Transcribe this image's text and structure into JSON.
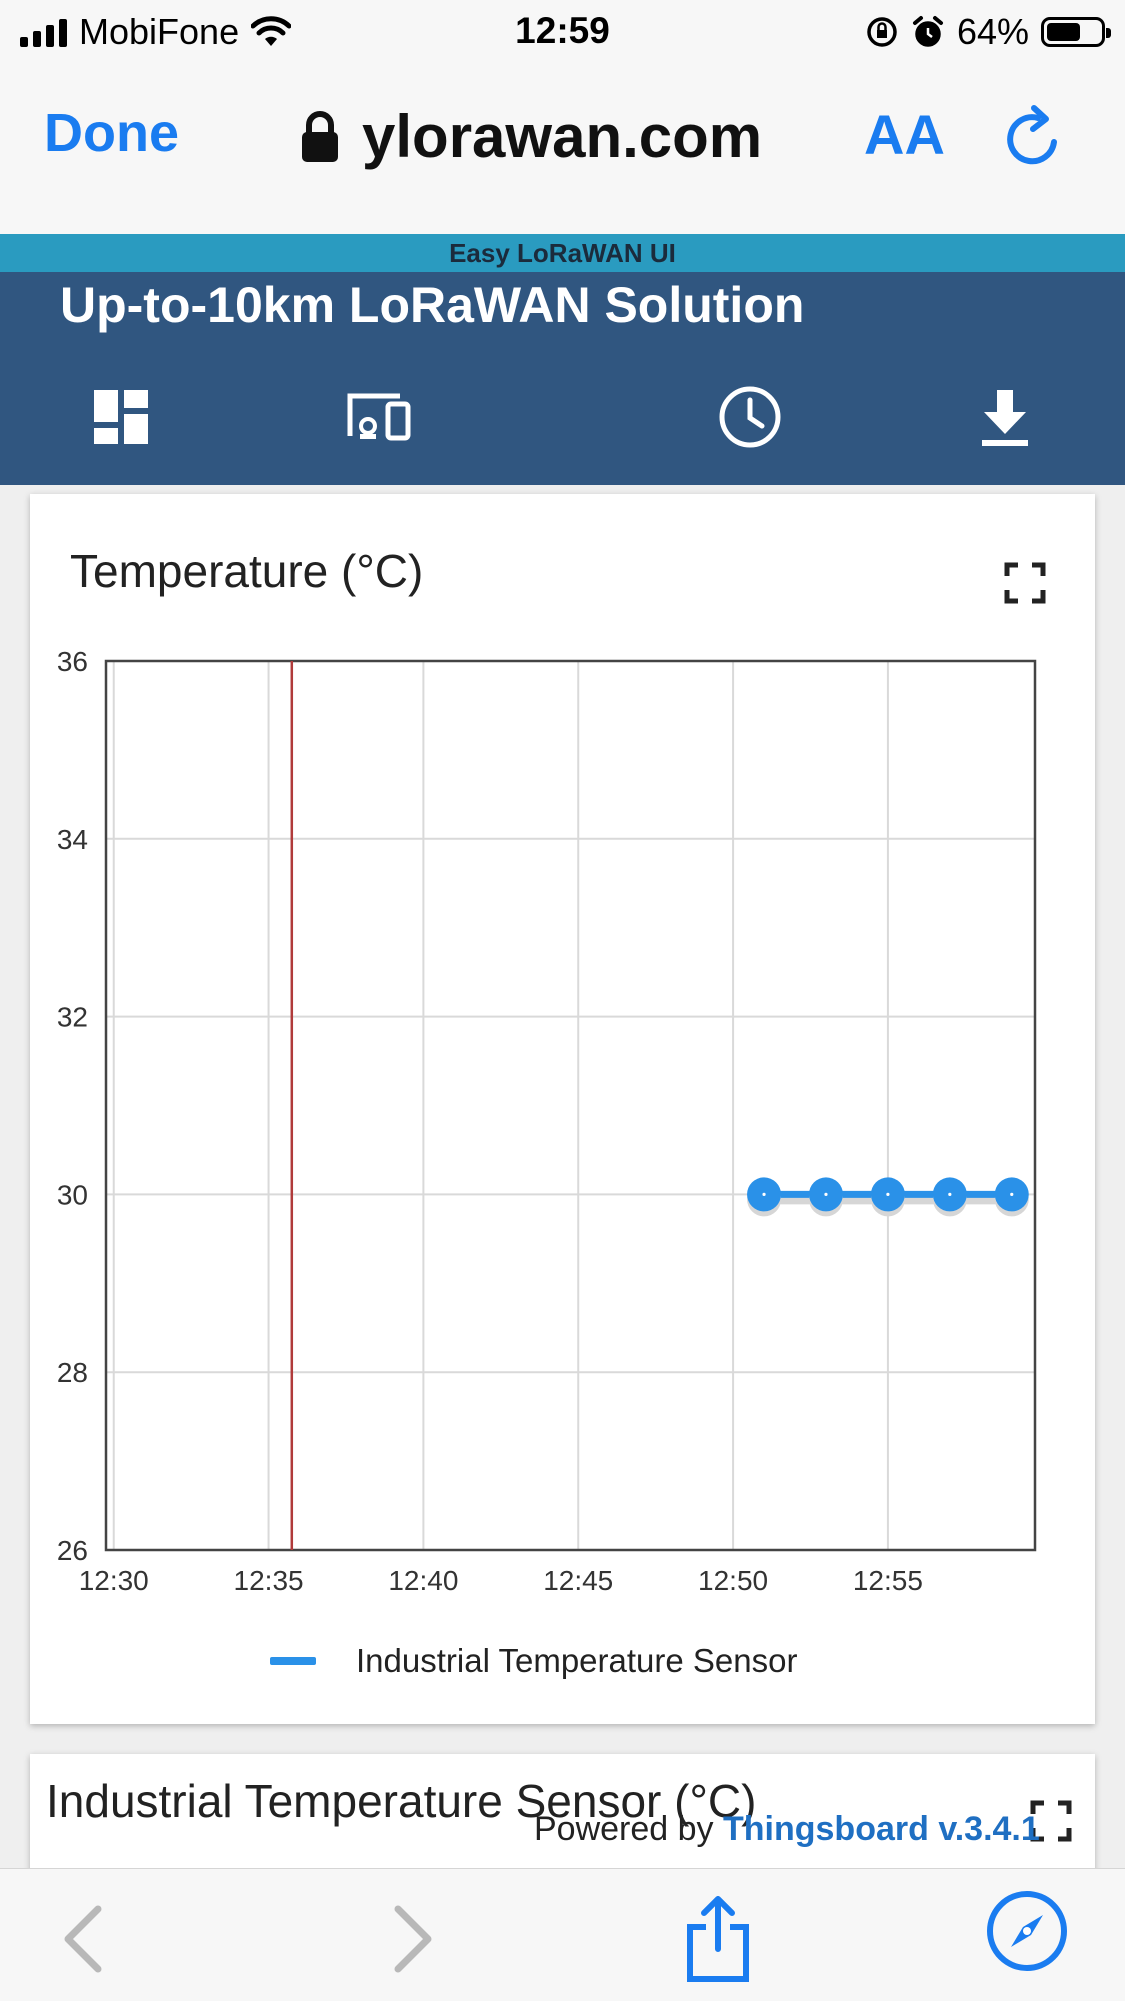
{
  "status_bar": {
    "carrier": "MobiFone",
    "time": "12:59",
    "battery": "64%",
    "battery_level": 0.64
  },
  "browser": {
    "done_label": "Done",
    "url": "ylorawan.com",
    "text_size_label": "AA",
    "icons": [
      "lock-icon",
      "reload-icon"
    ]
  },
  "dashboard": {
    "app_name": "Easy LoRaWAN UI",
    "title": "Up-to-10km LoRaWAN Solution",
    "toolbar_icons": [
      "dashboards-icon",
      "devices-icon",
      "clock-icon",
      "download-icon"
    ]
  },
  "widget": {
    "title": "Temperature (°C)",
    "legend": "Industrial Temperature Sensor"
  },
  "chart_data": {
    "type": "line",
    "title": "Temperature (°C)",
    "x_ticks": [
      "12:30",
      "12:35",
      "12:40",
      "12:45",
      "12:50",
      "12:55"
    ],
    "y_ticks": [
      26,
      28,
      30,
      32,
      34,
      36
    ],
    "ylim": [
      26,
      36
    ],
    "xlim": [
      "12:29:45",
      "12:59:45"
    ],
    "current_time_marker": "12:35:45",
    "grid": true,
    "legend_position": "bottom",
    "series": [
      {
        "name": "Industrial Temperature Sensor",
        "color": "#2a91e8",
        "x": [
          "12:51",
          "12:53",
          "12:55",
          "12:57",
          "12:59"
        ],
        "values": [
          30,
          30,
          30,
          30,
          30
        ]
      }
    ]
  },
  "next_widget": {
    "title": "Industrial Temperature Sensor (°C)"
  },
  "footer": {
    "powered_by": "Powered by",
    "link": "Thingsboard v.3.4.1"
  },
  "bottom_bar": {
    "icons": [
      "back-icon",
      "forward-icon",
      "share-icon",
      "compass-icon"
    ]
  },
  "colors": {
    "accent": "#1a7cf0",
    "header": "#305680",
    "strip": "#2a9bc0",
    "marker": "#b03a3a"
  }
}
